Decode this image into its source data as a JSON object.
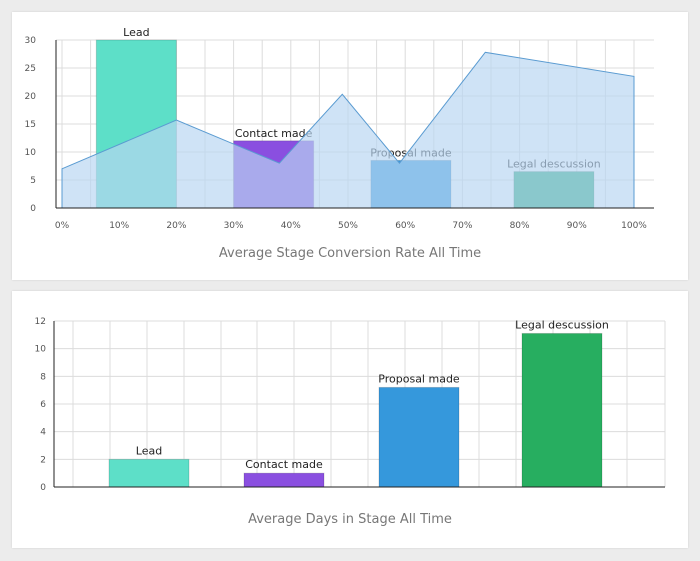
{
  "chart_data": [
    {
      "type": "bar",
      "title": "Average Stage Conversion Rate All Time",
      "x_tick_labels": [
        "0%",
        "10%",
        "20%",
        "30%",
        "40%",
        "50%",
        "60%",
        "70%",
        "80%",
        "90%",
        "100%"
      ],
      "y_tick_labels": [
        "0",
        "5",
        "10",
        "15",
        "20",
        "25",
        "30"
      ],
      "xlim": [
        0,
        100
      ],
      "ylim": [
        0,
        30
      ],
      "grid": true,
      "bars": [
        {
          "label": "Lead",
          "start": 6,
          "end": 20,
          "value": 30,
          "color": "#5ddfc8"
        },
        {
          "label": "Contact made",
          "start": 30,
          "end": 44,
          "value": 12,
          "color": "#8a4fe0"
        },
        {
          "label": "Proposal made",
          "start": 54,
          "end": 68,
          "value": 8.5,
          "color": "#3598dc"
        },
        {
          "label": "Legal descussion",
          "start": 79,
          "end": 93,
          "value": 6.5,
          "color": "#2bab7e"
        }
      ],
      "area": {
        "color": "#b8d6f2",
        "stroke": "#5a9bd1",
        "points": [
          [
            0,
            7
          ],
          [
            20,
            15.7
          ],
          [
            38,
            8
          ],
          [
            49,
            20.3
          ],
          [
            59,
            8
          ],
          [
            74,
            27.8
          ],
          [
            100,
            23.5
          ],
          [
            100,
            0
          ],
          [
            0,
            0
          ]
        ]
      }
    },
    {
      "type": "bar",
      "title": "Average Days in Stage All Time",
      "y_tick_labels": [
        "0",
        "2",
        "4",
        "6",
        "8",
        "10",
        "12"
      ],
      "ylim": [
        0,
        12
      ],
      "grid": true,
      "bars": [
        {
          "label": "Lead",
          "value": 2,
          "color": "#5ddfc8"
        },
        {
          "label": "Contact made",
          "value": 1,
          "color": "#8a4fe0"
        },
        {
          "label": "Proposal made",
          "value": 7.2,
          "color": "#3598dc"
        },
        {
          "label": "Legal descussion",
          "value": 11.1,
          "color": "#27ae60"
        }
      ]
    }
  ]
}
